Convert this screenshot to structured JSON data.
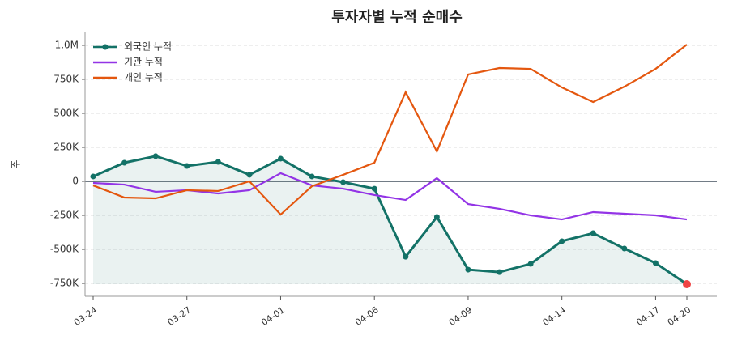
{
  "chart_data": {
    "type": "line",
    "title": "투자자별 누적 순매수",
    "ylabel": "주",
    "categories": [
      "03-24",
      null,
      null,
      "03-27",
      null,
      null,
      "04-01",
      null,
      null,
      "04-06",
      null,
      null,
      "04-09",
      null,
      null,
      "04-14",
      null,
      null,
      "04-17",
      "04-20"
    ],
    "series": [
      {
        "name": "외국인 누적",
        "color": "#137267",
        "markers": true,
        "fill": true,
        "values": [
          36000,
          137000,
          185000,
          113000,
          143000,
          48000,
          167000,
          36000,
          -6000,
          -54000,
          -554000,
          -262000,
          -649000,
          -667000,
          -607000,
          -440000,
          -381000,
          -494000,
          -601000,
          -756000
        ]
      },
      {
        "name": "기관 누적",
        "color": "#9334e6",
        "values": [
          -12000,
          -24000,
          -77000,
          -65000,
          -89000,
          -65000,
          60000,
          -30000,
          -54000,
          -101000,
          -137000,
          24000,
          -167000,
          -202000,
          -250000,
          -280000,
          -226000,
          -238000,
          -250000,
          -280000
        ]
      },
      {
        "name": "개인 누적",
        "color": "#e4570f",
        "values": [
          -30000,
          -119000,
          -125000,
          -65000,
          -71000,
          0,
          -244000,
          -36000,
          48000,
          137000,
          655000,
          220000,
          786000,
          833000,
          827000,
          690000,
          583000,
          696000,
          827000,
          1006000
        ]
      }
    ],
    "highlight_last_color": "#ef4444",
    "ylim": [
      -845000,
      1095000
    ],
    "yticks": [
      {
        "value": -750000,
        "label": "-750K"
      },
      {
        "value": -500000,
        "label": "-500K"
      },
      {
        "value": -250000,
        "label": "-250K"
      },
      0,
      {
        "value": 250000,
        "label": "250K"
      },
      {
        "value": 500000,
        "label": "500K"
      },
      {
        "value": 750000,
        "label": "750K"
      },
      {
        "value": 1000000,
        "label": "1.0M"
      }
    ],
    "grid": true,
    "legend": "upper left"
  }
}
